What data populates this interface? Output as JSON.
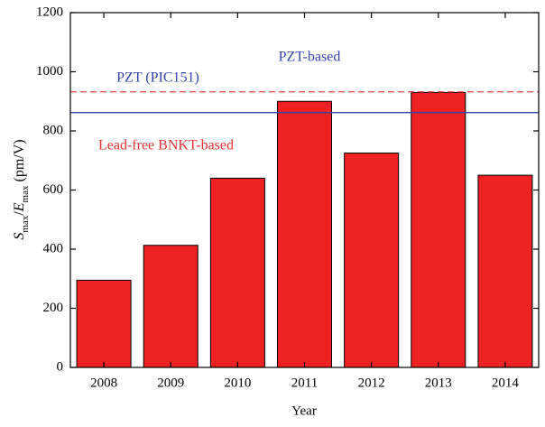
{
  "chart_data": {
    "type": "bar",
    "categories": [
      "2008",
      "2009",
      "2010",
      "2011",
      "2012",
      "2013",
      "2014"
    ],
    "values": [
      295,
      413,
      640,
      900,
      725,
      930,
      650
    ],
    "color": "#ee2222",
    "ylim": [
      0,
      1200
    ],
    "yticks": [
      0,
      200,
      400,
      600,
      800,
      1000,
      1200
    ],
    "x_label": "Year",
    "y_label_parts": [
      "S",
      "max",
      "/",
      "E",
      "max",
      " (pm/V)"
    ],
    "reference_lines": [
      {
        "value": 862,
        "color": "#3344aa",
        "style": "solid"
      },
      {
        "value": 932,
        "color": "#e84444",
        "style": "dashed"
      }
    ],
    "annotations": [
      {
        "text": "PZT-based",
        "color": "#3344aa"
      },
      {
        "text": "PZT (PIC151)",
        "color": "#3344aa"
      },
      {
        "text": "Lead-free BNKT-based",
        "color": "#e83333"
      }
    ]
  }
}
